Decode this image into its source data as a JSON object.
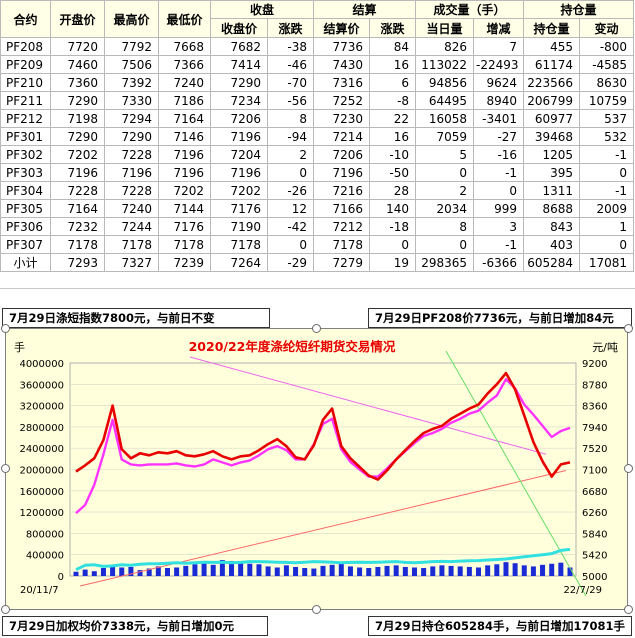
{
  "table": {
    "header_top": {
      "close_group": "收盘",
      "settle_group": "结算",
      "volume_group": "成交量（手）",
      "oi_group": "持仓量"
    },
    "header": [
      "合约",
      "开盘价",
      "最高价",
      "最低价",
      "收盘价",
      "涨跌",
      "结算价",
      "涨跌",
      "当日量",
      "增减",
      "持仓量",
      "变动"
    ],
    "rows": [
      [
        "PF208",
        "7720",
        "7792",
        "7668",
        "7682",
        "-38",
        "7736",
        "84",
        "826",
        "7",
        "455",
        "-800"
      ],
      [
        "PF209",
        "7460",
        "7506",
        "7366",
        "7414",
        "-46",
        "7430",
        "16",
        "113022",
        "-22493",
        "61174",
        "-4585"
      ],
      [
        "PF210",
        "7360",
        "7392",
        "7240",
        "7290",
        "-70",
        "7316",
        "6",
        "94856",
        "9624",
        "223566",
        "8630"
      ],
      [
        "PF211",
        "7290",
        "7330",
        "7186",
        "7234",
        "-56",
        "7252",
        "-8",
        "64495",
        "8940",
        "206799",
        "10759"
      ],
      [
        "PF212",
        "7198",
        "7294",
        "7164",
        "7206",
        "8",
        "7230",
        "22",
        "16058",
        "-3401",
        "60977",
        "537"
      ],
      [
        "PF301",
        "7290",
        "7290",
        "7146",
        "7196",
        "-94",
        "7214",
        "16",
        "7059",
        "-27",
        "39468",
        "532"
      ],
      [
        "PF302",
        "7202",
        "7228",
        "7196",
        "7204",
        "2",
        "7206",
        "-10",
        "5",
        "-16",
        "1205",
        "-1"
      ],
      [
        "PF303",
        "7196",
        "7196",
        "7196",
        "7196",
        "0",
        "7196",
        "-50",
        "0",
        "-1",
        "395",
        "0"
      ],
      [
        "PF304",
        "7228",
        "7228",
        "7202",
        "7202",
        "-26",
        "7216",
        "28",
        "2",
        "0",
        "1311",
        "-1"
      ],
      [
        "PF305",
        "7164",
        "7240",
        "7144",
        "7176",
        "12",
        "7166",
        "140",
        "2034",
        "999",
        "8688",
        "2009"
      ],
      [
        "PF306",
        "7232",
        "7244",
        "7176",
        "7190",
        "-42",
        "7212",
        "-18",
        "8",
        "3",
        "843",
        "1"
      ],
      [
        "PF307",
        "7178",
        "7178",
        "7178",
        "7178",
        "0",
        "7178",
        "0",
        "0",
        "-1",
        "403",
        "0"
      ]
    ],
    "summary": [
      "小计",
      "7293",
      "7327",
      "7239",
      "7264",
      "-29",
      "7279",
      "19",
      "298365",
      "-6366",
      "605284",
      "17081"
    ]
  },
  "notes": {
    "top_left": "7月29日涤短指数7800元，与前日不变",
    "top_right": "7月29日PF208价7736元，与前日增加84元",
    "bottom_left": "7月29日加权均价7338元，与前日增加0元",
    "bottom_right": "7月29日持仓605284手，与前日增加17081手"
  },
  "chart_data": {
    "type": "line",
    "title": "2020/22年度涤纶短纤期货交易情况",
    "left_unit": "手",
    "right_unit": "元/吨",
    "x_start_label": "20/11/7",
    "x_end_label": "22/7/29",
    "left_ticks": [
      "4000000",
      "3600000",
      "3200000",
      "2800000",
      "2400000",
      "2000000",
      "1600000",
      "1200000",
      "800000",
      "400000",
      "0"
    ],
    "right_ticks": [
      "9200",
      "8780",
      "8360",
      "7940",
      "7520",
      "7100",
      "6680",
      "6260",
      "5840",
      "5420",
      "5000"
    ],
    "ylim_left": [
      0,
      4000000
    ],
    "ylim_right": [
      5000,
      9200
    ],
    "colors": {
      "price_main": "#e80000",
      "price_index": "#ff33ff",
      "price_weighted": "#66cc44",
      "open_interest": "#33e0e0",
      "volume": "#1a2bd6",
      "trend_line_1": "#ff6666",
      "trend_line_2": "#ee66ee",
      "trend_line_3": "#66dd66"
    },
    "series": [
      {
        "key": "price_main",
        "values": [
          7060,
          7180,
          7320,
          7680,
          8360,
          7500,
          7320,
          7420,
          7380,
          7440,
          7420,
          7460,
          7380,
          7360,
          7400,
          7460,
          7360,
          7300,
          7360,
          7380,
          7480,
          7600,
          7700,
          7560,
          7340,
          7300,
          7580,
          8080,
          8300,
          7560,
          7320,
          7150,
          6980,
          6900,
          7080,
          7300,
          7480,
          7660,
          7820,
          7900,
          7960,
          8100,
          8200,
          8300,
          8380,
          8600,
          8780,
          9000,
          8680,
          8160,
          7640,
          7260,
          6960,
          7200,
          7240
        ]
      },
      {
        "key": "price_index",
        "values": [
          6240,
          6400,
          6800,
          7400,
          8080,
          7300,
          7200,
          7180,
          7200,
          7200,
          7200,
          7220,
          7180,
          7160,
          7200,
          7300,
          7240,
          7180,
          7240,
          7280,
          7380,
          7500,
          7560,
          7480,
          7300,
          7300,
          7600,
          8000,
          8100,
          7500,
          7250,
          7100,
          6960,
          6960,
          7120,
          7300,
          7460,
          7620,
          7760,
          7820,
          7900,
          8020,
          8100,
          8200,
          8260,
          8420,
          8560,
          8880,
          8700,
          8380,
          8180,
          7960,
          7740,
          7860,
          7920
        ]
      },
      {
        "key": "open_interest",
        "values": [
          120000,
          200000,
          210000,
          180000,
          190000,
          210000,
          200000,
          220000,
          230000,
          230000,
          240000,
          250000,
          240000,
          250000,
          260000,
          255000,
          260000,
          250000,
          255000,
          270000,
          270000,
          265000,
          260000,
          255000,
          250000,
          260000,
          270000,
          265000,
          260000,
          250000,
          255000,
          260000,
          255000,
          260000,
          265000,
          270000,
          255000,
          250000,
          260000,
          270000,
          275000,
          270000,
          280000,
          285000,
          290000,
          300000,
          310000,
          320000,
          340000,
          360000,
          380000,
          400000,
          420000,
          480000,
          500000
        ]
      },
      {
        "key": "volume",
        "values": [
          80000,
          120000,
          90000,
          150000,
          200000,
          160000,
          170000,
          110000,
          140000,
          180000,
          150000,
          160000,
          190000,
          220000,
          260000,
          210000,
          300000,
          280000,
          240000,
          230000,
          220000,
          180000,
          160000,
          200000,
          170000,
          150000,
          140000,
          190000,
          210000,
          230000,
          180000,
          160000,
          150000,
          170000,
          190000,
          200000,
          170000,
          160000,
          150000,
          180000,
          200000,
          190000,
          180000,
          170000,
          160000,
          200000,
          220000,
          260000,
          240000,
          200000,
          180000,
          210000,
          230000,
          250000,
          160000
        ]
      }
    ]
  }
}
